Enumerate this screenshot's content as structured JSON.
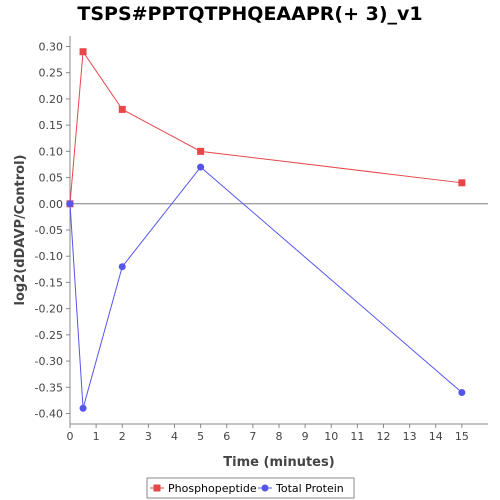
{
  "chart_data": {
    "type": "line",
    "title": "TSPS#PPTQTPHQEAAPR(+ 3)_v1",
    "xlabel": "Time (minutes)",
    "ylabel": "log2(dDAVP/Control)",
    "xlim": [
      0,
      16
    ],
    "ylim": [
      -0.42,
      0.32
    ],
    "xticks": [
      0,
      1,
      2,
      3,
      4,
      5,
      6,
      7,
      8,
      9,
      10,
      11,
      12,
      13,
      14,
      15
    ],
    "yticks": [
      0.3,
      0.25,
      0.2,
      0.15,
      0.1,
      0.05,
      0.0,
      -0.05,
      -0.1,
      -0.15,
      -0.2,
      -0.25,
      -0.3,
      -0.35,
      -0.4
    ],
    "ytick_labels": [
      "0.30",
      "0.25",
      "0.20",
      "0.15",
      "0.10",
      "0.05",
      "0.00",
      "-0.05",
      "-0.10",
      "-0.15",
      "-0.20",
      "-0.25",
      "-0.30",
      "-0.35",
      "-0.40"
    ],
    "zero_line": true,
    "grid": false,
    "legend_position": "bottom",
    "series": [
      {
        "name": "Phosphopeptide",
        "color": "#e8474a",
        "marker": "square",
        "x": [
          0,
          0.5,
          2,
          5,
          15
        ],
        "y": [
          0.0,
          0.29,
          0.18,
          0.1,
          0.04
        ]
      },
      {
        "name": "Total Protein",
        "color": "#5555ee",
        "marker": "circle",
        "x": [
          0,
          0.5,
          2,
          5,
          15
        ],
        "y": [
          0.0,
          -0.39,
          -0.12,
          0.07,
          -0.36
        ]
      }
    ]
  }
}
